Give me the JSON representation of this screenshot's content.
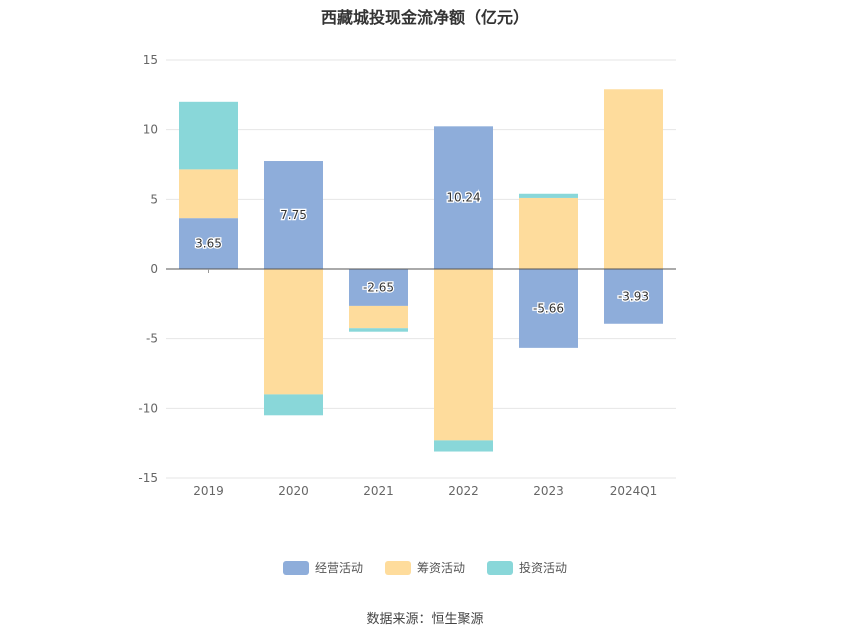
{
  "chart_data": {
    "type": "bar",
    "stacked": true,
    "title": "西藏城投现金流净额（亿元）",
    "categories": [
      "2019",
      "2020",
      "2021",
      "2022",
      "2023",
      "2024Q1"
    ],
    "ylim": [
      -15,
      15
    ],
    "yticks": [
      15,
      10,
      5,
      0,
      -5,
      -10,
      -15
    ],
    "grid": true,
    "legend_position": "bottom",
    "series": [
      {
        "name": "经营活动",
        "color": "#8eadda",
        "values": [
          3.65,
          7.75,
          -2.65,
          10.24,
          -5.66,
          -3.93
        ],
        "labels": [
          "3.65",
          "7.75",
          "-2.65",
          "10.24",
          "-5.66",
          "-3.93"
        ]
      },
      {
        "name": "筹资活动",
        "color": "#fedc9c",
        "values": [
          3.5,
          -9.0,
          -1.6,
          -12.3,
          5.1,
          12.9
        ]
      },
      {
        "name": "投资活动",
        "color": "#89d7d9",
        "values": [
          4.85,
          -1.5,
          -0.25,
          -0.8,
          0.3,
          0
        ]
      }
    ]
  },
  "source": "数据来源：恒生聚源"
}
